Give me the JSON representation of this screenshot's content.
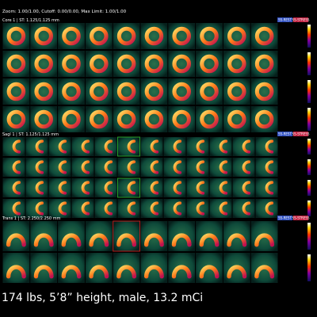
{
  "header": {
    "info": "Zoom: 1.00/1.00,  Cutoff: 0.00/0.00,  Max Limit: 1.00/1.00"
  },
  "sections": [
    {
      "label": "Core 1 | ST: 1.125/1.125 mm",
      "badges": [
        "SS-REST",
        "SS-STRESS"
      ]
    },
    {
      "label": "Sagl 1 | ST: 1.125/1.125 mm",
      "badges": [
        "SS-REST",
        "SS-STRESS"
      ]
    },
    {
      "label": "Trans 1 | ST: 2.250/2.250 mm",
      "badges": [
        "SS-REST",
        "SS-STRESS"
      ]
    }
  ],
  "caption": "174 lbs, 5’8” height, male, 13.2 mCi"
}
